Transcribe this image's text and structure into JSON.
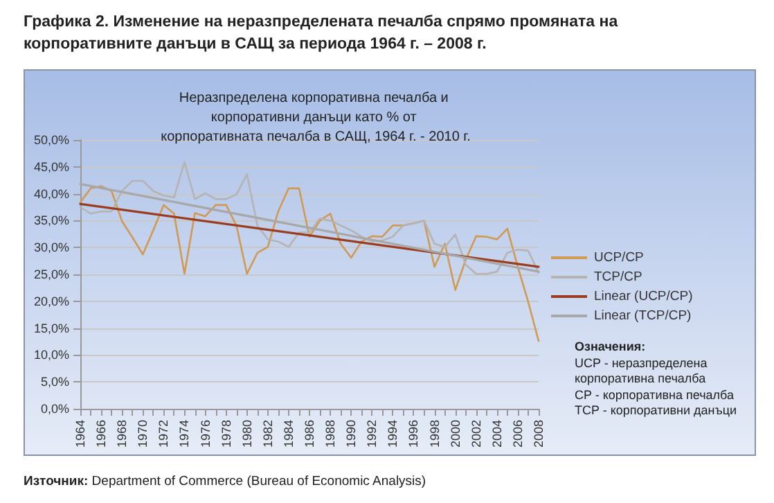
{
  "chart_data": {
    "type": "line",
    "title": "Графика 2. Изменение на неразпределената печалба спрямо промяната на корпоративните данъци в САЩ за периода 1964 г. – 2008 г.",
    "subtitle": "Неразпределена корпоративна печалба и корпоративни данъци като % от корпоративната печалба в САЩ, 1964 г. - 2010 г.",
    "categories": [
      "1964",
      null,
      "1966",
      null,
      "1968",
      null,
      "1970",
      null,
      "1972",
      null,
      "1974",
      null,
      "1976",
      null,
      "1978",
      null,
      "1980",
      null,
      "1982",
      null,
      "1984",
      null,
      "1986",
      null,
      "1988",
      null,
      "1990",
      null,
      "1992",
      null,
      "1994",
      null,
      "1996",
      null,
      "1998",
      null,
      "2000",
      null,
      "2002",
      null,
      "2004",
      null,
      "2006",
      null,
      "2008"
    ],
    "series": [
      {
        "name": "UCP/CP",
        "color": "#d09a55",
        "values": [
          38.4,
          41.0,
          41.4,
          40.5,
          34.9,
          31.9,
          28.7,
          33.2,
          37.9,
          36.3,
          25.1,
          36.4,
          35.8,
          37.9,
          37.9,
          34.0,
          25.1,
          29.0,
          30.1,
          36.7,
          41.0,
          41.0,
          32.0,
          35.0,
          36.3,
          30.7,
          28.1,
          31.1,
          32.1,
          32.0,
          34.1,
          34.1,
          34.5,
          35.0,
          26.4,
          30.7,
          22.1,
          27.7,
          32.1,
          32.0,
          31.5,
          33.5,
          26.4,
          19.9,
          12.6
        ]
      },
      {
        "name": "TCP/CP",
        "color": "#b4b4b4",
        "values": [
          37.5,
          36.3,
          36.7,
          36.7,
          40.5,
          42.4,
          42.4,
          40.5,
          39.7,
          39.3,
          45.9,
          39.0,
          40.1,
          39.0,
          39.0,
          39.9,
          43.6,
          34.1,
          31.5,
          31.1,
          30.1,
          32.8,
          32.8,
          35.4,
          35.0,
          34.1,
          33.2,
          32.0,
          31.1,
          31.3,
          32.0,
          34.1,
          34.5,
          35.0,
          30.7,
          30.1,
          32.4,
          26.8,
          25.1,
          25.1,
          25.5,
          29.0,
          29.6,
          29.4,
          25.3
        ]
      },
      {
        "name": "Linear (UCP/CP)",
        "color": "#9a3c1e",
        "values": [
          38.1,
          null,
          null,
          null,
          null,
          null,
          null,
          null,
          null,
          null,
          null,
          null,
          null,
          null,
          null,
          null,
          null,
          null,
          null,
          null,
          null,
          null,
          null,
          null,
          null,
          null,
          null,
          null,
          null,
          null,
          null,
          null,
          null,
          null,
          null,
          null,
          null,
          null,
          null,
          null,
          null,
          null,
          null,
          null,
          26.4
        ]
      },
      {
        "name": "Linear (TCP/CP)",
        "color": "#a8a8a8",
        "values": [
          41.8,
          null,
          null,
          null,
          null,
          null,
          null,
          null,
          null,
          null,
          null,
          null,
          null,
          null,
          null,
          null,
          null,
          null,
          null,
          null,
          null,
          null,
          null,
          null,
          null,
          null,
          null,
          null,
          null,
          null,
          null,
          null,
          null,
          null,
          null,
          null,
          null,
          null,
          null,
          null,
          null,
          null,
          null,
          null,
          25.5
        ]
      }
    ],
    "ylim": [
      0,
      50
    ],
    "yticks": [
      {
        "value": 0,
        "label": "0,0%"
      },
      {
        "value": 5,
        "label": "5,0%"
      },
      {
        "value": 10,
        "label": "10,0%"
      },
      {
        "value": 15,
        "label": "15,0%"
      },
      {
        "value": 20,
        "label": "20,0%"
      },
      {
        "value": 25,
        "label": "25,0%"
      },
      {
        "value": 30,
        "label": "30,0%"
      },
      {
        "value": 35,
        "label": "35,0%"
      },
      {
        "value": 40,
        "label": "40,0%"
      },
      {
        "value": 45,
        "label": "45,0%"
      },
      {
        "value": 50,
        "label": "50,0%"
      }
    ],
    "grid": "y",
    "legend": "right",
    "marker": "none",
    "line_style": "solid",
    "annotations": [
      "Означения:",
      "UCP - неразпределена корпоративна печалба",
      "CP - корпоративна печалба",
      "TCP - корпоративни данъци",
      "Източник: Department of Commerce (Bureau of Economic Analysis)"
    ]
  }
}
